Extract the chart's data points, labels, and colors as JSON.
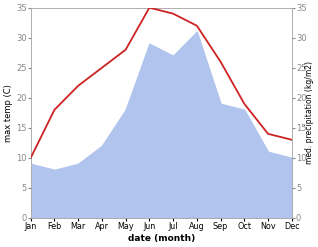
{
  "months": [
    "Jan",
    "Feb",
    "Mar",
    "Apr",
    "May",
    "Jun",
    "Jul",
    "Aug",
    "Sep",
    "Oct",
    "Nov",
    "Dec"
  ],
  "temperature": [
    10,
    18,
    22,
    25,
    28,
    35,
    34,
    32,
    26,
    19,
    14,
    13
  ],
  "precipitation": [
    9,
    8,
    9,
    12,
    18,
    29,
    27,
    31,
    19,
    18,
    11,
    10
  ],
  "temp_color": "#cc2222",
  "precip_color": "#b0c4ee",
  "ylim_temp": [
    0,
    35
  ],
  "ylim_precip": [
    0,
    35
  ],
  "xlabel": "date (month)",
  "ylabel_left": "max temp (C)",
  "ylabel_right": "med. precipitation (kg/m2)",
  "bg_color": "#ffffff",
  "tick_color": "#888888",
  "spine_color": "#aaaaaa"
}
